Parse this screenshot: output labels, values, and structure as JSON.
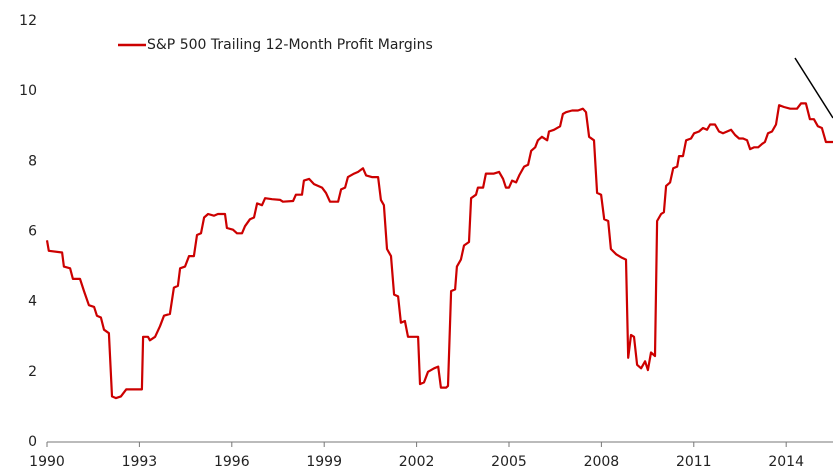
{
  "chart_data": {
    "type": "line",
    "series": [
      {
        "name": "S&P 500 Trailing 12-Month Profit Margins",
        "color": "#cc0000",
        "x": [
          1990.0,
          1990.06,
          1990.49,
          1990.55,
          1990.75,
          1990.84,
          1991.07,
          1991.2,
          1991.36,
          1991.53,
          1991.62,
          1991.75,
          1991.85,
          1992.01,
          1992.11,
          1992.24,
          1992.4,
          1992.57,
          1992.82,
          1993.08,
          1993.12,
          1993.28,
          1993.34,
          1993.51,
          1993.67,
          1993.8,
          1993.99,
          1994.12,
          1994.25,
          1994.32,
          1994.48,
          1994.61,
          1994.77,
          1994.87,
          1995.0,
          1995.1,
          1995.23,
          1995.42,
          1995.55,
          1995.78,
          1995.84,
          1996.04,
          1996.17,
          1996.33,
          1996.43,
          1996.59,
          1996.72,
          1996.82,
          1996.98,
          1997.08,
          1997.31,
          1997.57,
          1997.66,
          1997.99,
          1998.08,
          1998.28,
          1998.34,
          1998.51,
          1998.67,
          1998.8,
          1998.93,
          1999.06,
          1999.19,
          1999.45,
          1999.55,
          1999.68,
          1999.77,
          1999.97,
          2000.1,
          2000.26,
          2000.36,
          2000.55,
          2000.75,
          2000.84,
          2000.94,
          2001.04,
          2001.17,
          2001.27,
          2001.4,
          2001.49,
          2001.62,
          2001.72,
          2001.92,
          2002.05,
          2002.11,
          2002.24,
          2002.37,
          2002.57,
          2002.7,
          2002.79,
          2002.96,
          2003.02,
          2003.12,
          2003.25,
          2003.31,
          2003.44,
          2003.54,
          2003.7,
          2003.77,
          2003.93,
          2003.99,
          2004.16,
          2004.25,
          2004.51,
          2004.68,
          2004.81,
          2004.9,
          2005.0,
          2005.1,
          2005.23,
          2005.33,
          2005.49,
          2005.62,
          2005.72,
          2005.85,
          2005.94,
          2006.07,
          2006.24,
          2006.3,
          2006.46,
          2006.66,
          2006.75,
          2006.85,
          2007.05,
          2007.24,
          2007.4,
          2007.5,
          2007.6,
          2007.76,
          2007.86,
          2007.99,
          2008.09,
          2008.22,
          2008.31,
          2008.48,
          2008.67,
          2008.8,
          2008.87,
          2008.96,
          2009.06,
          2009.16,
          2009.29,
          2009.42,
          2009.51,
          2009.61,
          2009.74,
          2009.81,
          2009.94,
          2010.03,
          2010.1,
          2010.23,
          2010.33,
          2010.46,
          2010.52,
          2010.65,
          2010.75,
          2010.91,
          2011.01,
          2011.17,
          2011.3,
          2011.43,
          2011.53,
          2011.69,
          2011.82,
          2011.95,
          2012.08,
          2012.21,
          2012.34,
          2012.47,
          2012.6,
          2012.73,
          2012.83,
          2012.96,
          2013.09,
          2013.22,
          2013.31,
          2013.41,
          2013.54,
          2013.67,
          2013.77,
          2013.93,
          2014.13,
          2014.35,
          2014.48,
          2014.64,
          2014.77,
          2014.9,
          2015.03,
          2015.16,
          2015.29,
          2015.52
        ],
        "values": [
          5.75,
          5.45,
          5.4,
          5.0,
          4.95,
          4.65,
          4.65,
          4.3,
          3.9,
          3.85,
          3.6,
          3.55,
          3.2,
          3.1,
          1.3,
          1.25,
          1.3,
          1.5,
          1.5,
          1.5,
          3.0,
          3.0,
          2.9,
          3.0,
          3.3,
          3.6,
          3.65,
          4.4,
          4.45,
          4.95,
          5.0,
          5.3,
          5.3,
          5.9,
          5.95,
          6.4,
          6.5,
          6.45,
          6.5,
          6.5,
          6.1,
          6.05,
          5.95,
          5.95,
          6.15,
          6.35,
          6.4,
          6.8,
          6.75,
          6.95,
          6.92,
          6.9,
          6.85,
          6.87,
          7.05,
          7.05,
          7.45,
          7.5,
          7.35,
          7.3,
          7.25,
          7.1,
          6.85,
          6.85,
          7.2,
          7.25,
          7.55,
          7.65,
          7.7,
          7.8,
          7.6,
          7.55,
          7.55,
          6.9,
          6.75,
          5.5,
          5.3,
          4.2,
          4.15,
          3.4,
          3.45,
          3.0,
          3.0,
          3.0,
          1.65,
          1.7,
          2.0,
          2.1,
          2.15,
          1.55,
          1.55,
          1.6,
          4.3,
          4.35,
          5.0,
          5.2,
          5.6,
          5.7,
          6.95,
          7.05,
          7.25,
          7.25,
          7.65,
          7.65,
          7.7,
          7.5,
          7.25,
          7.25,
          7.45,
          7.4,
          7.6,
          7.85,
          7.9,
          8.3,
          8.4,
          8.6,
          8.7,
          8.6,
          8.85,
          8.9,
          9.0,
          9.35,
          9.4,
          9.45,
          9.45,
          9.5,
          9.4,
          8.7,
          8.6,
          7.1,
          7.05,
          6.35,
          6.3,
          5.5,
          5.35,
          5.25,
          5.2,
          2.4,
          3.05,
          3.0,
          2.2,
          2.1,
          2.3,
          2.05,
          2.55,
          2.45,
          6.3,
          6.5,
          6.55,
          7.3,
          7.4,
          7.8,
          7.85,
          8.15,
          8.15,
          8.6,
          8.65,
          8.8,
          8.85,
          8.95,
          8.9,
          9.05,
          9.05,
          8.85,
          8.8,
          8.85,
          8.9,
          8.75,
          8.65,
          8.65,
          8.6,
          8.35,
          8.4,
          8.4,
          8.5,
          8.55,
          8.8,
          8.85,
          9.05,
          9.6,
          9.55,
          9.5,
          9.5,
          9.65,
          9.65,
          9.2,
          9.2,
          9.0,
          8.95,
          8.55,
          8.55
        ]
      }
    ],
    "xlim": [
      1990,
      2015.52
    ],
    "xticks": [
      1990,
      1993,
      1996,
      1999,
      2002,
      2005,
      2008,
      2011,
      2014
    ],
    "ylim": [
      0,
      12
    ],
    "yticks": [
      0,
      2,
      4,
      6,
      8,
      10,
      12
    ],
    "legend": "top-left"
  }
}
